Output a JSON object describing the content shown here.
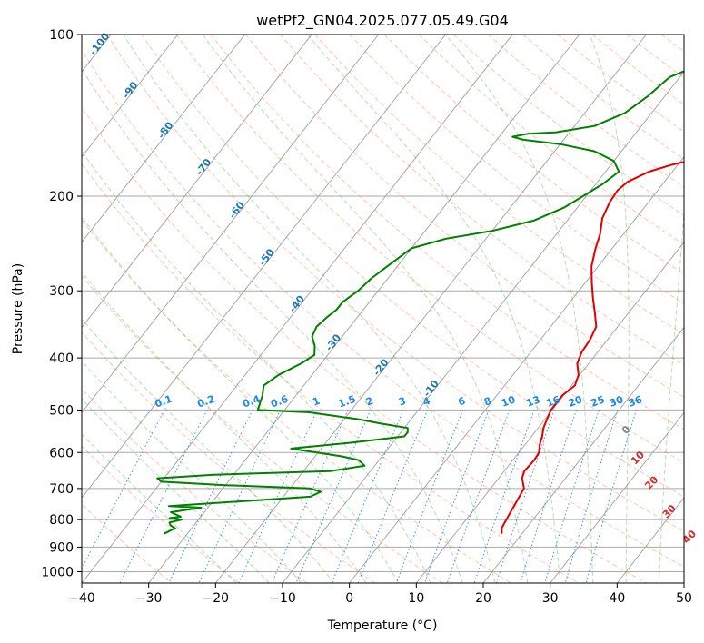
{
  "chart_data": {
    "type": "line",
    "title": "wetPf2_GN04.2025.077.05.49.G04",
    "xlabel": "Temperature (°C)",
    "ylabel": "Pressure (hPa)",
    "xlim": [
      -40,
      50
    ],
    "ylim": [
      1050,
      100
    ],
    "y_scale": "log",
    "grid": true,
    "x_ticks": [
      -40,
      -30,
      -20,
      -10,
      0,
      10,
      20,
      30,
      40,
      50
    ],
    "y_ticks": [
      100,
      200,
      300,
      400,
      500,
      600,
      700,
      800,
      900,
      1000
    ],
    "series": [
      {
        "color": "#e00000",
        "points": [
          [
            17,
            850
          ],
          [
            16.3,
            830
          ],
          [
            16,
            800
          ],
          [
            15.6,
            760
          ],
          [
            15.3,
            730
          ],
          [
            15,
            700
          ],
          [
            13.5,
            670
          ],
          [
            13,
            650
          ],
          [
            13.2,
            620
          ],
          [
            13,
            600
          ],
          [
            12.2,
            580
          ],
          [
            11.6,
            560
          ],
          [
            10.8,
            540
          ],
          [
            10.3,
            520
          ],
          [
            9.8,
            500
          ],
          [
            9.8,
            470
          ],
          [
            10.5,
            450
          ],
          [
            9.8,
            430
          ],
          [
            8.3,
            410
          ],
          [
            7.6,
            390
          ],
          [
            7.4,
            370
          ],
          [
            6.8,
            350
          ],
          [
            5,
            330
          ],
          [
            3,
            310
          ],
          [
            1,
            290
          ],
          [
            -1,
            270
          ],
          [
            -2.5,
            250
          ],
          [
            -3.5,
            235
          ],
          [
            -5,
            220
          ],
          [
            -5.8,
            205
          ],
          [
            -6,
            195
          ],
          [
            -5.5,
            188
          ],
          [
            -3.5,
            180
          ],
          [
            -1,
            175
          ],
          [
            2.5,
            170
          ],
          [
            5.5,
            165
          ],
          [
            7.5,
            160
          ],
          [
            8.5,
            150
          ],
          [
            9,
            140
          ],
          [
            10,
            130
          ],
          [
            11.5,
            125
          ],
          [
            13,
            120
          ],
          [
            14,
            115
          ],
          [
            14.8,
            110
          ],
          [
            15.3,
            105
          ],
          [
            15.6,
            100
          ]
        ]
      },
      {
        "color": "#008000",
        "points": [
          [
            -33.5,
            850
          ],
          [
            -32.5,
            830
          ],
          [
            -33.5,
            820
          ],
          [
            -34,
            810
          ],
          [
            -32.5,
            800
          ],
          [
            -34.5,
            795
          ],
          [
            -33,
            790
          ],
          [
            -35,
            775
          ],
          [
            -31,
            760
          ],
          [
            -36,
            755
          ],
          [
            -26,
            740
          ],
          [
            -16,
            725
          ],
          [
            -15,
            710
          ],
          [
            -17,
            700
          ],
          [
            -30,
            690
          ],
          [
            -40,
            680
          ],
          [
            -41,
            670
          ],
          [
            -33,
            660
          ],
          [
            -16,
            650
          ],
          [
            -11.5,
            635
          ],
          [
            -13,
            620
          ],
          [
            -16,
            610
          ],
          [
            -24.5,
            590
          ],
          [
            -16,
            575
          ],
          [
            -9,
            560
          ],
          [
            -9,
            550
          ],
          [
            -9.5,
            540
          ],
          [
            -14,
            530
          ],
          [
            -18,
            520
          ],
          [
            -26,
            505
          ],
          [
            -34,
            500
          ],
          [
            -34.5,
            485
          ],
          [
            -35,
            470
          ],
          [
            -36,
            450
          ],
          [
            -35,
            430
          ],
          [
            -33,
            410
          ],
          [
            -32,
            395
          ],
          [
            -33,
            380
          ],
          [
            -34.5,
            365
          ],
          [
            -35,
            350
          ],
          [
            -34.5,
            335
          ],
          [
            -34,
            325
          ],
          [
            -34,
            315
          ],
          [
            -33,
            300
          ],
          [
            -32.5,
            285
          ],
          [
            -31.5,
            270
          ],
          [
            -30,
            250
          ],
          [
            -28,
            245
          ],
          [
            -26,
            240
          ],
          [
            -20,
            232
          ],
          [
            -15,
            222
          ],
          [
            -12,
            210
          ],
          [
            -10.5,
            200
          ],
          [
            -9,
            190
          ],
          [
            -8,
            180
          ],
          [
            -10,
            172
          ],
          [
            -14,
            165
          ],
          [
            -20,
            160
          ],
          [
            -26,
            157
          ],
          [
            -28,
            155
          ],
          [
            -26,
            153
          ],
          [
            -22,
            152
          ],
          [
            -17,
            148
          ],
          [
            -14,
            140
          ],
          [
            -12.5,
            130
          ],
          [
            -11.5,
            120
          ],
          [
            -9,
            115
          ],
          [
            -5,
            110
          ],
          [
            -1,
            104
          ],
          [
            1,
            100
          ]
        ]
      }
    ],
    "isotherm_labels": [
      "-100",
      "-90",
      "-80",
      "-70",
      "-60",
      "-50",
      "-40",
      "-30",
      "-20",
      "-10"
    ],
    "mixing_ratio_labels": [
      "0.1",
      "0.2",
      "0.4",
      "0.6",
      "1",
      "1.5",
      "2",
      "3",
      "4",
      "6",
      "8",
      "10",
      "13",
      "16",
      "20",
      "25",
      "30",
      "36"
    ],
    "moist_adiabat_labels": [
      "0",
      "10",
      "20",
      "30",
      "40"
    ],
    "colors": {
      "temperature": "#e00000",
      "dewpoint": "#008000",
      "isotherm_label": "#1f77b4",
      "mixing_ratio": "#1e88e5",
      "dry_adiabat": "#ff7f50",
      "moist_adiabat": "#2ca02c",
      "moist_label_zero": "#808080",
      "moist_label": "#d62728",
      "isotherm_line": "#a0a0a0"
    }
  }
}
